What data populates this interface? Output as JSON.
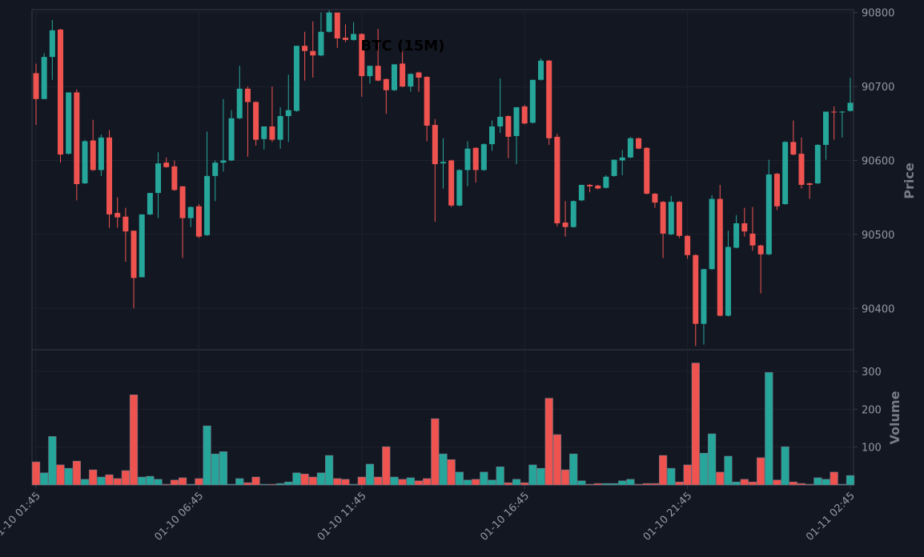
{
  "chart_data": {
    "type": "candlestick",
    "title": "BTC (15M)",
    "ylabel": "Price",
    "volume_label": "Volume",
    "categories": [
      "01-10 01:45",
      null,
      null,
      null,
      null,
      null,
      null,
      null,
      null,
      null,
      null,
      null,
      null,
      null,
      null,
      null,
      null,
      null,
      null,
      null,
      "01-10 06:45",
      null,
      null,
      null,
      null,
      null,
      null,
      null,
      null,
      null,
      null,
      null,
      null,
      null,
      null,
      null,
      null,
      null,
      null,
      null,
      "01-10 11:45",
      null,
      null,
      null,
      null,
      null,
      null,
      null,
      null,
      null,
      null,
      null,
      null,
      null,
      null,
      null,
      null,
      null,
      null,
      null,
      "01-10 16:45",
      null,
      null,
      null,
      null,
      null,
      null,
      null,
      null,
      null,
      null,
      null,
      null,
      null,
      null,
      null,
      null,
      null,
      null,
      null,
      "01-10 21:45",
      null,
      null,
      null,
      null,
      null,
      null,
      null,
      null,
      null,
      null,
      null,
      null,
      null,
      null,
      null,
      null,
      null,
      null,
      null,
      "01-11 02:45"
    ],
    "open": [
      90718,
      90683,
      90740,
      90777,
      90609,
      90692,
      90569,
      90627,
      90587,
      90631,
      90529,
      90524,
      90505,
      90442,
      90527,
      90556,
      90597,
      90592,
      90565,
      90522,
      90538,
      90499,
      90579,
      90597,
      90600,
      90657,
      90697,
      90679,
      90629,
      90646,
      90628,
      90660,
      90667,
      90755,
      90748,
      90742,
      90774,
      90800,
      90766,
      90763,
      90771,
      90714,
      90728,
      90710,
      90695,
      90731,
      90700,
      90719,
      90713,
      90648,
      90596,
      90600,
      90539,
      90587,
      90617,
      90587,
      90622,
      90646,
      90660,
      90633,
      90673,
      90651,
      90709,
      90735,
      90632,
      90516,
      90510,
      90546,
      90567,
      90566,
      90563,
      90579,
      90600,
      90604,
      90630,
      90617,
      90555,
      90544,
      90500,
      90544,
      90498,
      90472,
      90379,
      90453,
      90548,
      90390,
      90482,
      90515,
      90501,
      90485,
      90473,
      90582,
      90541,
      90625,
      90609,
      90569,
      90569,
      90621,
      90666,
      90665,
      90667
    ],
    "high": [
      90731,
      90745,
      90790,
      90778,
      90692,
      90696,
      90628,
      90655,
      90635,
      90641,
      90550,
      90536,
      90505,
      90527,
      90556,
      90611,
      90604,
      90600,
      90565,
      90538,
      90541,
      90639,
      90600,
      90683,
      90668,
      90728,
      90700,
      90680,
      90646,
      90700,
      90672,
      90716,
      90755,
      90774,
      90788,
      90800,
      90803,
      90800,
      90784,
      90787,
      90772,
      90728,
      90778,
      90711,
      90730,
      90748,
      90718,
      90720,
      90714,
      90656,
      90630,
      90601,
      90588,
      90626,
      90618,
      90623,
      90654,
      90711,
      90661,
      90672,
      90675,
      90709,
      90738,
      90736,
      90636,
      90545,
      90546,
      90567,
      90568,
      90567,
      90580,
      90601,
      90614,
      90632,
      90631,
      90618,
      90556,
      90545,
      90552,
      90545,
      90499,
      90473,
      90453,
      90553,
      90567,
      90505,
      90526,
      90536,
      90537,
      90486,
      90601,
      90583,
      90626,
      90654,
      90631,
      90570,
      90622,
      90666,
      90673,
      90667,
      90712
    ],
    "low": [
      90648,
      90683,
      90709,
      90597,
      90608,
      90546,
      90568,
      90586,
      90579,
      90509,
      90509,
      90463,
      90400,
      90442,
      90526,
      90522,
      90590,
      90559,
      90468,
      90510,
      90495,
      90498,
      90545,
      90585,
      90599,
      90656,
      90605,
      90620,
      90615,
      90625,
      90616,
      90625,
      90666,
      90708,
      90712,
      90741,
      90773,
      90752,
      90760,
      90762,
      90686,
      90704,
      90707,
      90663,
      90694,
      90699,
      90693,
      90693,
      90626,
      90517,
      90562,
      90537,
      90538,
      90565,
      90570,
      90586,
      90613,
      90637,
      90603,
      90595,
      90649,
      90650,
      90708,
      90621,
      90511,
      90497,
      90509,
      90545,
      90557,
      90561,
      90562,
      90578,
      90580,
      90603,
      90615,
      90554,
      90536,
      90468,
      90499,
      90495,
      90467,
      90349,
      90351,
      90452,
      90389,
      90389,
      90481,
      90497,
      90478,
      90420,
      90472,
      90533,
      90540,
      90607,
      90562,
      90548,
      90568,
      90601,
      90628,
      90631,
      90666
    ],
    "close": [
      90683,
      90740,
      90776,
      90608,
      90692,
      90568,
      90626,
      90587,
      90631,
      90527,
      90523,
      90504,
      90441,
      90527,
      90556,
      90596,
      90591,
      90560,
      90522,
      90537,
      90497,
      90579,
      90597,
      90600,
      90657,
      90697,
      90679,
      90628,
      90646,
      90628,
      90660,
      90668,
      90755,
      90748,
      90742,
      90774,
      90800,
      90765,
      90763,
      90771,
      90714,
      90728,
      90708,
      90695,
      90730,
      90700,
      90717,
      90712,
      90647,
      90595,
      90598,
      90539,
      90587,
      90616,
      90587,
      90622,
      90646,
      90659,
      90632,
      90672,
      90650,
      90709,
      90735,
      90630,
      90515,
      90510,
      90545,
      90567,
      90565,
      90562,
      90578,
      90601,
      90604,
      90630,
      90616,
      90555,
      90543,
      90501,
      90544,
      90498,
      90472,
      90379,
      90453,
      90548,
      90390,
      90483,
      90515,
      90504,
      90485,
      90473,
      90581,
      90538,
      90625,
      90608,
      90567,
      90567,
      90621,
      90666,
      90665,
      90666,
      90678
    ],
    "volume": [
      61,
      32,
      128,
      53,
      44,
      63,
      15,
      40,
      21,
      27,
      17,
      38,
      238,
      21,
      23,
      15,
      2,
      13,
      19,
      2,
      17,
      156,
      82,
      88,
      2,
      17,
      6,
      21,
      2,
      2,
      4,
      8,
      32,
      29,
      21,
      32,
      78,
      17,
      15,
      2,
      21,
      55,
      21,
      101,
      21,
      15,
      19,
      11,
      17,
      175,
      82,
      67,
      34,
      13,
      15,
      34,
      13,
      48,
      6,
      15,
      6,
      53,
      44,
      229,
      133,
      40,
      82,
      11,
      2,
      4,
      4,
      4,
      11,
      15,
      2,
      4,
      4,
      78,
      44,
      8,
      53,
      322,
      84,
      135,
      34,
      76,
      8,
      15,
      8,
      72,
      297,
      13,
      101,
      8,
      4,
      2,
      19,
      15,
      34,
      2,
      25
    ],
    "up_color": "#26a69a",
    "down_color": "#ef5350",
    "ylim": [
      90344,
      90804
    ],
    "yticks": [
      90400,
      90500,
      90600,
      90700,
      90800
    ],
    "volume_ylim": [
      0,
      357
    ],
    "volume_yticks": [
      100,
      200,
      300
    ],
    "grid": true
  }
}
